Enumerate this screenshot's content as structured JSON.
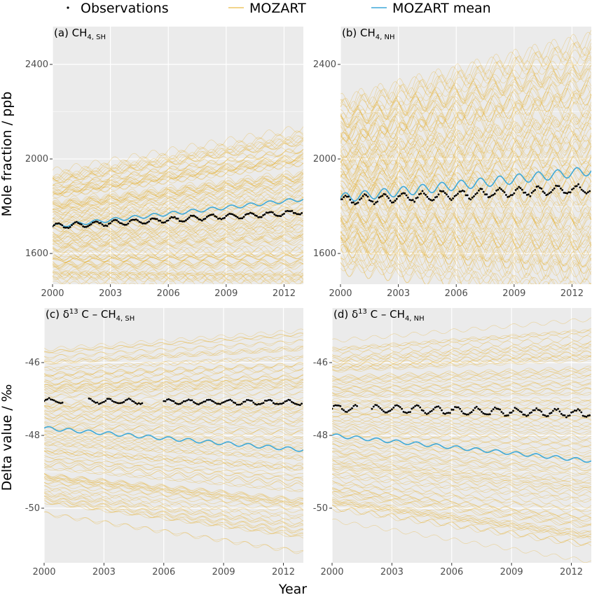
{
  "legend": {
    "observations": "Observations",
    "mozart": "MOZART",
    "mozart_mean": "MOZART mean"
  },
  "colors": {
    "panel_bg": "#ebebeb",
    "grid": "#ffffff",
    "ensemble": "#e6a817",
    "mean": "#3fa9d8",
    "observations": "#000000"
  },
  "axes": {
    "xlabel": "Year",
    "ylabel_top": "Mole fraction / ppb",
    "ylabel_bottom": "Delta value / ‰"
  },
  "chart_data": [
    {
      "type": "line",
      "panel": "a",
      "title": {
        "prefix": "(a) ",
        "main": "CH",
        "sub": "4, SH",
        "tail": ""
      },
      "xlim": [
        2000,
        2013
      ],
      "ylim": [
        1470,
        2560
      ],
      "xticks": [
        2000,
        2003,
        2006,
        2009,
        2012
      ],
      "xticklabels": [
        "2000",
        "2003",
        "2006",
        "2009",
        "2012"
      ],
      "yticks": [
        1600,
        2000,
        2400
      ],
      "yticklabels": [
        "1600",
        "2000",
        "2400"
      ],
      "ensemble": {
        "count": 110,
        "start_range": [
          1480,
          1940
        ],
        "spread_growth": 0.45,
        "seasonal_amp": 12
      },
      "mean": {
        "start": 1715,
        "end": 1830,
        "seasonal_amp": 8
      },
      "observations": {
        "start": 1715,
        "end": 1775,
        "seasonal_amp": 10,
        "per_year": 12,
        "gaps": []
      }
    },
    {
      "type": "line",
      "panel": "b",
      "title": {
        "prefix": "(b) ",
        "main": "CH",
        "sub": "4, NH",
        "tail": ""
      },
      "xlim": [
        2000,
        2013
      ],
      "ylim": [
        1470,
        2560
      ],
      "xticks": [
        2000,
        2003,
        2006,
        2009,
        2012
      ],
      "xticklabels": [
        "2000",
        "2003",
        "2006",
        "2009",
        "2012"
      ],
      "yticks": [
        1600,
        2000,
        2400
      ],
      "yticklabels": [
        "1600",
        "2000",
        "2400"
      ],
      "ensemble": {
        "count": 110,
        "start_range": [
          1560,
          2220
        ],
        "spread_growth": 0.55,
        "seasonal_amp": 30
      },
      "mean": {
        "start": 1835,
        "end": 1950,
        "seasonal_amp": 20
      },
      "observations": {
        "start": 1825,
        "end": 1875,
        "seasonal_amp": 18,
        "per_year": 12,
        "gaps": []
      }
    },
    {
      "type": "line",
      "panel": "c",
      "title": {
        "prefix": "(c) ",
        "main": "δ",
        "sup": "13",
        "main2": " C – CH",
        "sub": "4, SH",
        "tail": ""
      },
      "xlim": [
        2000,
        2013
      ],
      "ylim": [
        -51.5,
        -44.5
      ],
      "xticks": [
        2000,
        2003,
        2006,
        2009,
        2012
      ],
      "xticklabels": [
        "2000",
        "2003",
        "2006",
        "2009",
        "2012"
      ],
      "yticks": [
        -50,
        -48,
        -46
      ],
      "yticklabels": [
        "-50",
        "-48",
        "-46"
      ],
      "ensemble": {
        "count": 110,
        "start_range": [
          -50.0,
          -45.7
        ],
        "spread_growth": 0.35,
        "seasonal_amp": 0.05
      },
      "mean": {
        "start": -47.8,
        "end": -48.4,
        "seasonal_amp": 0.05
      },
      "observations": {
        "start": -47.05,
        "end": -47.1,
        "seasonal_amp": 0.06,
        "per_year": 12,
        "gaps": [
          [
            2001.0,
            2002.2
          ],
          [
            2005.0,
            2006.0
          ]
        ]
      }
    },
    {
      "type": "line",
      "panel": "d",
      "title": {
        "prefix": "(d) ",
        "main": "δ",
        "sup": "13",
        "main2": " C – CH",
        "sub": "4, NH",
        "tail": ""
      },
      "xlim": [
        2000,
        2013
      ],
      "ylim": [
        -51.5,
        -44.5
      ],
      "xticks": [
        2000,
        2003,
        2006,
        2009,
        2012
      ],
      "xticklabels": [
        "2000",
        "2003",
        "2006",
        "2009",
        "2012"
      ],
      "yticks": [
        -50,
        -48,
        -46
      ],
      "yticklabels": [
        "-50",
        "-48",
        "-46"
      ],
      "ensemble": {
        "count": 110,
        "start_range": [
          -50.2,
          -45.5
        ],
        "spread_growth": 0.35,
        "seasonal_amp": 0.05
      },
      "mean": {
        "start": -48.0,
        "end": -48.7,
        "seasonal_amp": 0.05
      },
      "observations": {
        "start": -47.25,
        "end": -47.4,
        "seasonal_amp": 0.1,
        "per_year": 12,
        "gaps": [
          [
            2001.3,
            2002.0
          ]
        ]
      }
    }
  ]
}
